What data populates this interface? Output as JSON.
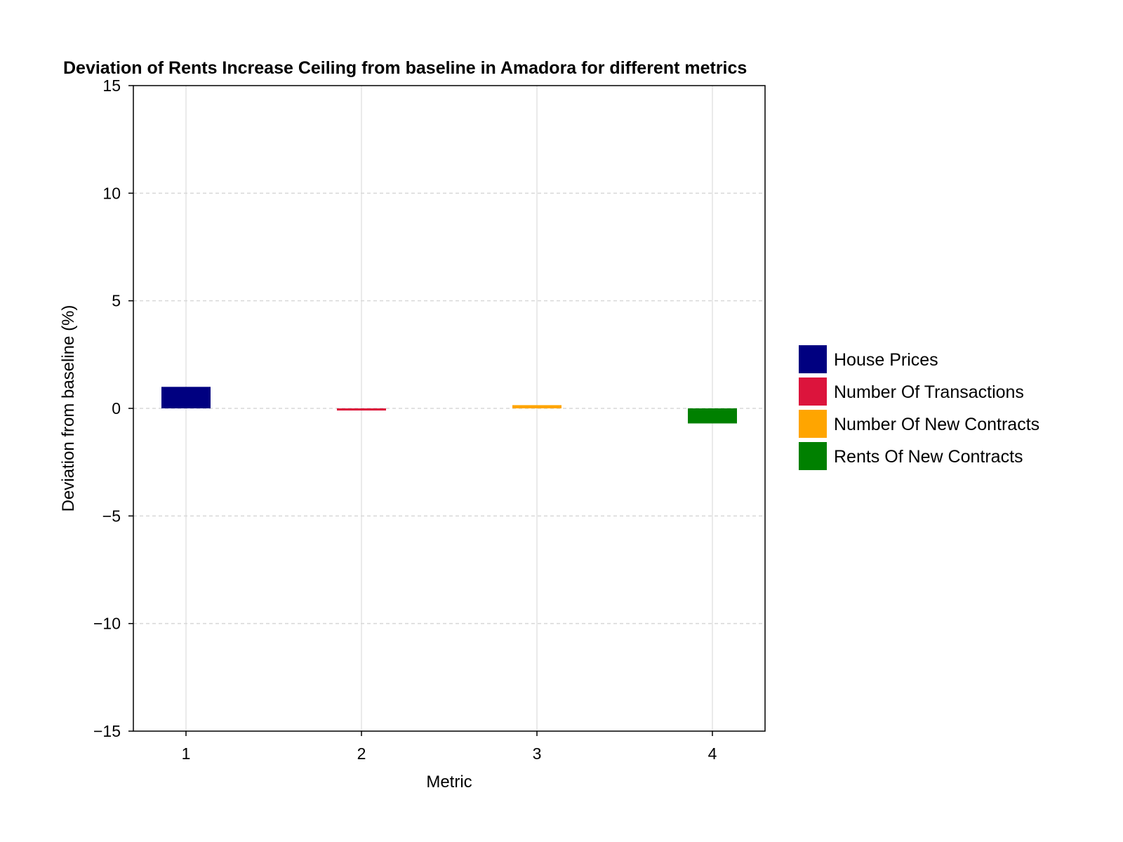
{
  "chart_data": {
    "type": "bar",
    "title": "Deviation of Rents Increase Ceiling from baseline in Amadora for different metrics",
    "xlabel": "Metric",
    "ylabel": "Deviation from baseline (%)",
    "categories": [
      "1",
      "2",
      "3",
      "4"
    ],
    "x": [
      1,
      2,
      3,
      4
    ],
    "ylim": [
      -15,
      15
    ],
    "xlim": [
      0.7,
      4.3
    ],
    "yticks": [
      -15,
      -10,
      -5,
      0,
      5,
      10,
      15
    ],
    "ytick_labels": [
      "−15",
      "−10",
      "−5",
      "0",
      "5",
      "10",
      "15"
    ],
    "xtick_labels": [
      "1",
      "2",
      "3",
      "4"
    ],
    "grid": true,
    "legend_position": "right",
    "series": [
      {
        "name": "House Prices",
        "x": 1,
        "value": 1.0,
        "color": "#000080"
      },
      {
        "name": "Number Of Transactions",
        "x": 2,
        "value": -0.1,
        "color": "#DC143C"
      },
      {
        "name": "Number Of New Contracts",
        "x": 3,
        "value": 0.15,
        "color": "#FFA500"
      },
      {
        "name": "Rents Of New Contracts",
        "x": 4,
        "value": -0.7,
        "color": "#008000"
      }
    ]
  }
}
